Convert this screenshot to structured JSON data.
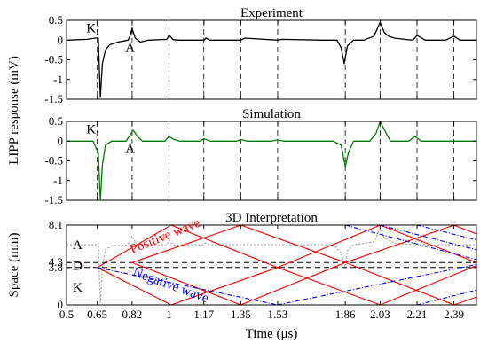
{
  "figure": {
    "ylabel_shared": "LIPP response (mV)",
    "xlabel": "Time (μs)",
    "x_ticks": [
      0.5,
      0.65,
      0.82,
      1,
      1.17,
      1.35,
      1.53,
      1.86,
      2.03,
      2.21,
      2.39
    ],
    "x_tick_labels": [
      "0.5",
      "0.65",
      "0.82",
      "1",
      "1.17",
      "1.35",
      "1.53",
      "1.86",
      "2.03",
      "2.21",
      "2.39"
    ],
    "xlim": [
      0.5,
      2.5
    ]
  },
  "chart_data": [
    {
      "type": "line",
      "title": "Experiment",
      "ylim": [
        -1.5,
        0.5
      ],
      "y_ticks": [
        -1.5,
        -1,
        -0.5,
        0,
        0.5
      ],
      "y_tick_labels": [
        "-1.5",
        "-1",
        "-0.5",
        "0",
        "0.5"
      ],
      "grid": "dashed vertical lines at x ticks",
      "annotations": [
        {
          "text": "K",
          "x": 0.62,
          "y": 0.2
        },
        {
          "text": "A",
          "x": 0.81,
          "y": -0.3
        }
      ],
      "series": [
        {
          "color": "#000000",
          "x": [
            0.5,
            0.6,
            0.64,
            0.655,
            0.665,
            0.675,
            0.69,
            0.71,
            0.75,
            0.8,
            0.81,
            0.82,
            0.835,
            0.86,
            0.9,
            0.99,
            1.0,
            1.02,
            1.05,
            1.17,
            1.18,
            1.2,
            1.35,
            1.37,
            1.53,
            1.55,
            1.75,
            1.82,
            1.84,
            1.855,
            1.87,
            1.9,
            1.95,
            2.0,
            2.03,
            2.05,
            2.07,
            2.1,
            2.15,
            2.19,
            2.21,
            2.25,
            2.35,
            2.39,
            2.42,
            2.5
          ],
          "y": [
            0.0,
            0.02,
            0.05,
            0.05,
            -1.45,
            -0.6,
            -0.25,
            -0.12,
            -0.05,
            0.0,
            0.1,
            0.3,
            0.05,
            -0.05,
            0.0,
            0.02,
            0.13,
            0.01,
            0.0,
            0.0,
            0.05,
            0.0,
            0.0,
            0.05,
            0.0,
            0.02,
            0.0,
            0.0,
            -0.2,
            -0.6,
            -0.15,
            0.0,
            0.0,
            0.1,
            0.45,
            0.2,
            0.1,
            0.05,
            0.02,
            0.0,
            0.12,
            0.0,
            0.0,
            0.1,
            0.0,
            0.0
          ]
        }
      ]
    },
    {
      "type": "line",
      "title": "Simulation",
      "ylim": [
        -1.5,
        0.5
      ],
      "y_ticks": [
        -1.5,
        -1,
        -0.5,
        0,
        0.5
      ],
      "y_tick_labels": [
        "-1.5",
        "-1",
        "-0.5",
        "0",
        "0.5"
      ],
      "grid": "dashed vertical lines at x ticks",
      "annotations": [
        {
          "text": "K",
          "x": 0.62,
          "y": 0.2
        },
        {
          "text": "A",
          "x": 0.81,
          "y": -0.3
        }
      ],
      "series": [
        {
          "color": "#007a00",
          "x": [
            0.5,
            0.63,
            0.655,
            0.665,
            0.675,
            0.69,
            0.72,
            0.79,
            0.81,
            0.825,
            0.845,
            0.87,
            0.9,
            0.98,
            1.0,
            1.02,
            1.05,
            1.15,
            1.17,
            1.2,
            1.33,
            1.35,
            1.38,
            1.5,
            1.53,
            1.56,
            1.8,
            1.84,
            1.86,
            1.875,
            1.9,
            1.98,
            2.01,
            2.03,
            2.05,
            2.08,
            2.17,
            2.2,
            2.23,
            2.3,
            2.5
          ],
          "y": [
            0.0,
            0.0,
            -0.3,
            -1.5,
            -0.6,
            -0.1,
            0.0,
            0.0,
            0.15,
            0.28,
            0.12,
            0.0,
            0.0,
            0.0,
            0.12,
            0.05,
            0.0,
            0.0,
            0.06,
            0.0,
            0.0,
            0.04,
            0.0,
            0.0,
            0.03,
            0.0,
            0.0,
            -0.1,
            -0.65,
            -0.3,
            0.0,
            0.0,
            0.2,
            0.5,
            0.3,
            0.0,
            0.0,
            0.12,
            0.0,
            0.0,
            0.0
          ]
        }
      ]
    },
    {
      "type": "line",
      "title": "3D Interpretation",
      "ylabel": "Space (mm)",
      "xlabel": "Time (μs)",
      "ylim": [
        0,
        8.1
      ],
      "y_ticks": [
        0,
        3.8,
        4.3,
        8.1
      ],
      "y_tick_labels": [
        "0",
        "3.8",
        "4.3",
        "8.1"
      ],
      "region_labels": [
        {
          "text": "A",
          "x": 0.545,
          "y": 6.1
        },
        {
          "text": "D",
          "x": 0.545,
          "y": 4.0
        },
        {
          "text": "K",
          "x": 0.545,
          "y": 1.8
        }
      ],
      "annotations": [
        {
          "text": "Positive wave",
          "color": "#ff0000",
          "x": 0.82,
          "y": 5.2,
          "angle": -22
        },
        {
          "text": "Negative wave",
          "color": "#0000ff",
          "x": 0.82,
          "y": 3.0,
          "angle": 20
        }
      ],
      "reference_lines": [
        {
          "y": 4.3,
          "style": "dashed",
          "color": "#000000"
        },
        {
          "y": 3.8,
          "style": "dashed",
          "color": "#000000"
        }
      ],
      "positive_wave_segments": [
        {
          "x": [
            0.65,
            1.01
          ],
          "y": [
            3.8,
            8.1
          ]
        },
        {
          "x": [
            0.65,
            1.01
          ],
          "y": [
            3.8,
            0.0
          ]
        },
        {
          "x": [
            0.82,
            1.35
          ],
          "y": [
            4.3,
            8.1
          ]
        },
        {
          "x": [
            0.82,
            1.35
          ],
          "y": [
            4.3,
            0.0
          ]
        },
        {
          "x": [
            1.01,
            1.53
          ],
          "y": [
            8.1,
            3.8
          ]
        },
        {
          "x": [
            1.01,
            1.53
          ],
          "y": [
            0.0,
            3.8
          ]
        },
        {
          "x": [
            1.35,
            1.86
          ],
          "y": [
            8.1,
            4.3
          ]
        },
        {
          "x": [
            1.35,
            1.86
          ],
          "y": [
            0.0,
            4.3
          ]
        },
        {
          "x": [
            1.53,
            2.03
          ],
          "y": [
            3.8,
            8.1
          ]
        },
        {
          "x": [
            1.53,
            2.03
          ],
          "y": [
            3.8,
            0.0
          ]
        },
        {
          "x": [
            1.86,
            2.39
          ],
          "y": [
            4.3,
            8.1
          ]
        },
        {
          "x": [
            1.86,
            2.39
          ],
          "y": [
            4.3,
            0.0
          ]
        },
        {
          "x": [
            2.03,
            2.5
          ],
          "y": [
            8.1,
            4.3
          ]
        },
        {
          "x": [
            2.03,
            2.5
          ],
          "y": [
            0.0,
            4.0
          ]
        },
        {
          "x": [
            2.39,
            2.5
          ],
          "y": [
            8.1,
            7.2
          ]
        },
        {
          "x": [
            2.39,
            2.5
          ],
          "y": [
            0.0,
            0.8
          ]
        }
      ],
      "negative_wave_segments": [
        {
          "x": [
            0.65,
            1.53
          ],
          "y": [
            3.8,
            0.0
          ]
        },
        {
          "x": [
            1.53,
            2.5
          ],
          "y": [
            0.0,
            4.1
          ]
        },
        {
          "x": [
            1.86,
            2.5
          ],
          "y": [
            8.1,
            4.6
          ]
        },
        {
          "x": [
            2.03,
            2.5
          ],
          "y": [
            8.1,
            5.6
          ]
        },
        {
          "x": [
            2.21,
            2.5
          ],
          "y": [
            8.1,
            6.6
          ]
        },
        {
          "x": [
            2.21,
            2.5
          ],
          "y": [
            0.0,
            1.5
          ]
        }
      ],
      "background_trace": {
        "color": "#a0a0a0",
        "x": [
          0.5,
          0.64,
          0.655,
          0.665,
          0.675,
          0.69,
          0.72,
          0.8,
          0.82,
          0.835,
          0.87,
          0.99,
          1.0,
          1.02,
          1.17,
          1.18,
          1.2,
          1.8,
          1.84,
          1.86,
          1.87,
          1.9,
          2.0,
          2.03,
          2.05,
          2.1,
          2.19,
          2.21,
          2.25,
          2.5
        ],
        "y": [
          6.1,
          6.1,
          6.3,
          0.2,
          3.8,
          5.6,
          6.0,
          6.1,
          7.0,
          6.4,
          6.1,
          6.1,
          6.6,
          6.1,
          6.1,
          6.3,
          6.1,
          6.1,
          5.3,
          3.7,
          5.5,
          6.1,
          6.4,
          7.8,
          6.8,
          6.3,
          6.1,
          6.6,
          6.1,
          6.1
        ]
      }
    }
  ]
}
